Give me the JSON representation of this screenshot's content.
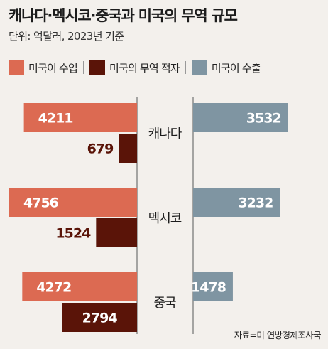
{
  "title": "캐나다·멕시코·중국과 미국의 무역 규모",
  "unit_text": "단위: 억달러, 2023년 기준",
  "source": "자료=미 연방경제조사국",
  "chart_data": {
    "type": "bar",
    "title": "캐나다·멕시코·중국과 미국의 무역 규모",
    "categories": [
      "캐나다",
      "멕시코",
      "중국"
    ],
    "series": [
      {
        "name": "미국이 수입",
        "color": "#dc6a52",
        "values": [
          4211,
          4756,
          4272
        ]
      },
      {
        "name": "미국의 무역 적자",
        "color": "#5a1408",
        "values": [
          679,
          1524,
          2794
        ]
      },
      {
        "name": "미국이 수출",
        "color": "#7f95a2",
        "values": [
          3532,
          3232,
          1478
        ]
      }
    ],
    "legend_position": "top",
    "grid": false
  }
}
